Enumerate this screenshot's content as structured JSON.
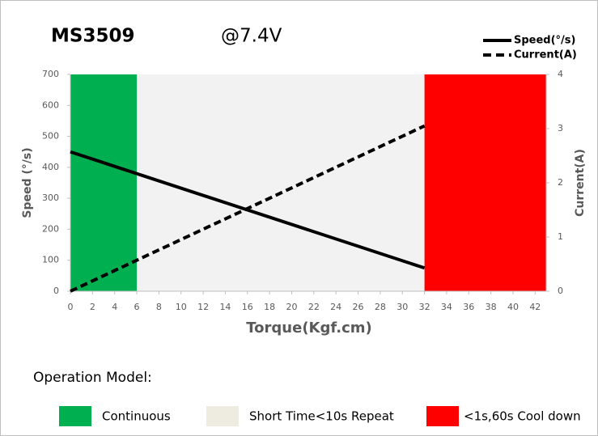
{
  "chart_data": {
    "type": "line",
    "title": "MS3509",
    "subtitle": "@7.4V",
    "x_label": "Torque(Kgf.cm)",
    "y_label": "Speed  (°/s)",
    "y2_label": "Current(A)",
    "x": [
      0,
      32
    ],
    "xlim": [
      0,
      43
    ],
    "xticks": [
      0,
      2,
      4,
      6,
      8,
      10,
      12,
      14,
      16,
      18,
      20,
      22,
      24,
      26,
      28,
      30,
      32,
      34,
      36,
      38,
      40,
      42
    ],
    "ylim": [
      0,
      700
    ],
    "yticks": [
      0,
      100,
      200,
      300,
      400,
      500,
      600,
      700
    ],
    "y2lim": [
      0,
      4
    ],
    "y2ticks": [
      0,
      1,
      2,
      3,
      4
    ],
    "series": [
      {
        "name": "Speed(°/s)",
        "color": "#000000",
        "values": [
          450,
          75
        ],
        "dash": false
      },
      {
        "name": "Current(A)",
        "color": "#000000",
        "values": [
          0,
          3.05
        ],
        "axis": "y2",
        "dash": true
      }
    ],
    "bands_title": "Operation Model:",
    "bands": [
      {
        "name": "Continuous",
        "color": "#00b050",
        "from": 0,
        "to": 6
      },
      {
        "name": "Short Time<10s Repeat",
        "color": "#f2f2f2",
        "from": 6,
        "to": 32
      },
      {
        "name": "<1s,60s Cool down",
        "color": "#ff0000",
        "from": 32,
        "to": 43
      }
    ]
  }
}
